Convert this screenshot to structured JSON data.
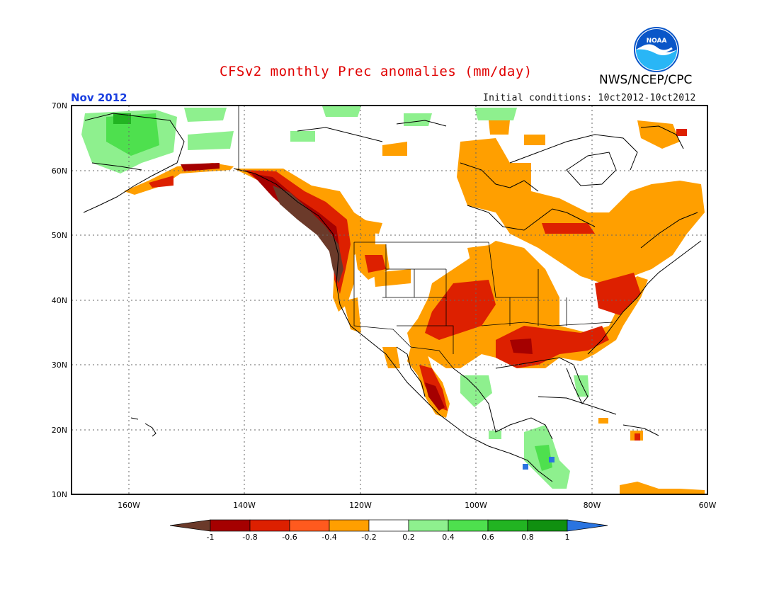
{
  "header": {
    "title": "CFSv2 monthly Prec anomalies (mm/day)",
    "org": "NWS/NCEP/CPC",
    "logo_text": "NOAA",
    "month": "Nov 2012",
    "initial_conditions": "Initial conditions: 10ct2012-10ct2012"
  },
  "map": {
    "lat_labels": [
      "70N",
      "60N",
      "50N",
      "40N",
      "30N",
      "20N",
      "10N"
    ],
    "lon_labels": [
      "160W",
      "140W",
      "120W",
      "100W",
      "80W",
      "60W"
    ],
    "lat_range": [
      10,
      70
    ],
    "lon_range": [
      -170,
      -60
    ]
  },
  "legend": {
    "labels": [
      "-1",
      "-0.8",
      "-0.6",
      "-0.4",
      "-0.2",
      "0.2",
      "0.4",
      "0.6",
      "0.8",
      "1"
    ],
    "colors": [
      "#6b3a2a",
      "#a50000",
      "#dd2000",
      "#ff5a1e",
      "#ff9f00",
      "#ffffff",
      "#8ef08e",
      "#4ee04e",
      "#22b422",
      "#109010",
      "#2a74e0"
    ]
  },
  "colors": {
    "title": "#e00000",
    "month": "#1a3fe0",
    "noaa_blue": "#0a56c8",
    "noaa_cyan": "#29b6f6"
  }
}
